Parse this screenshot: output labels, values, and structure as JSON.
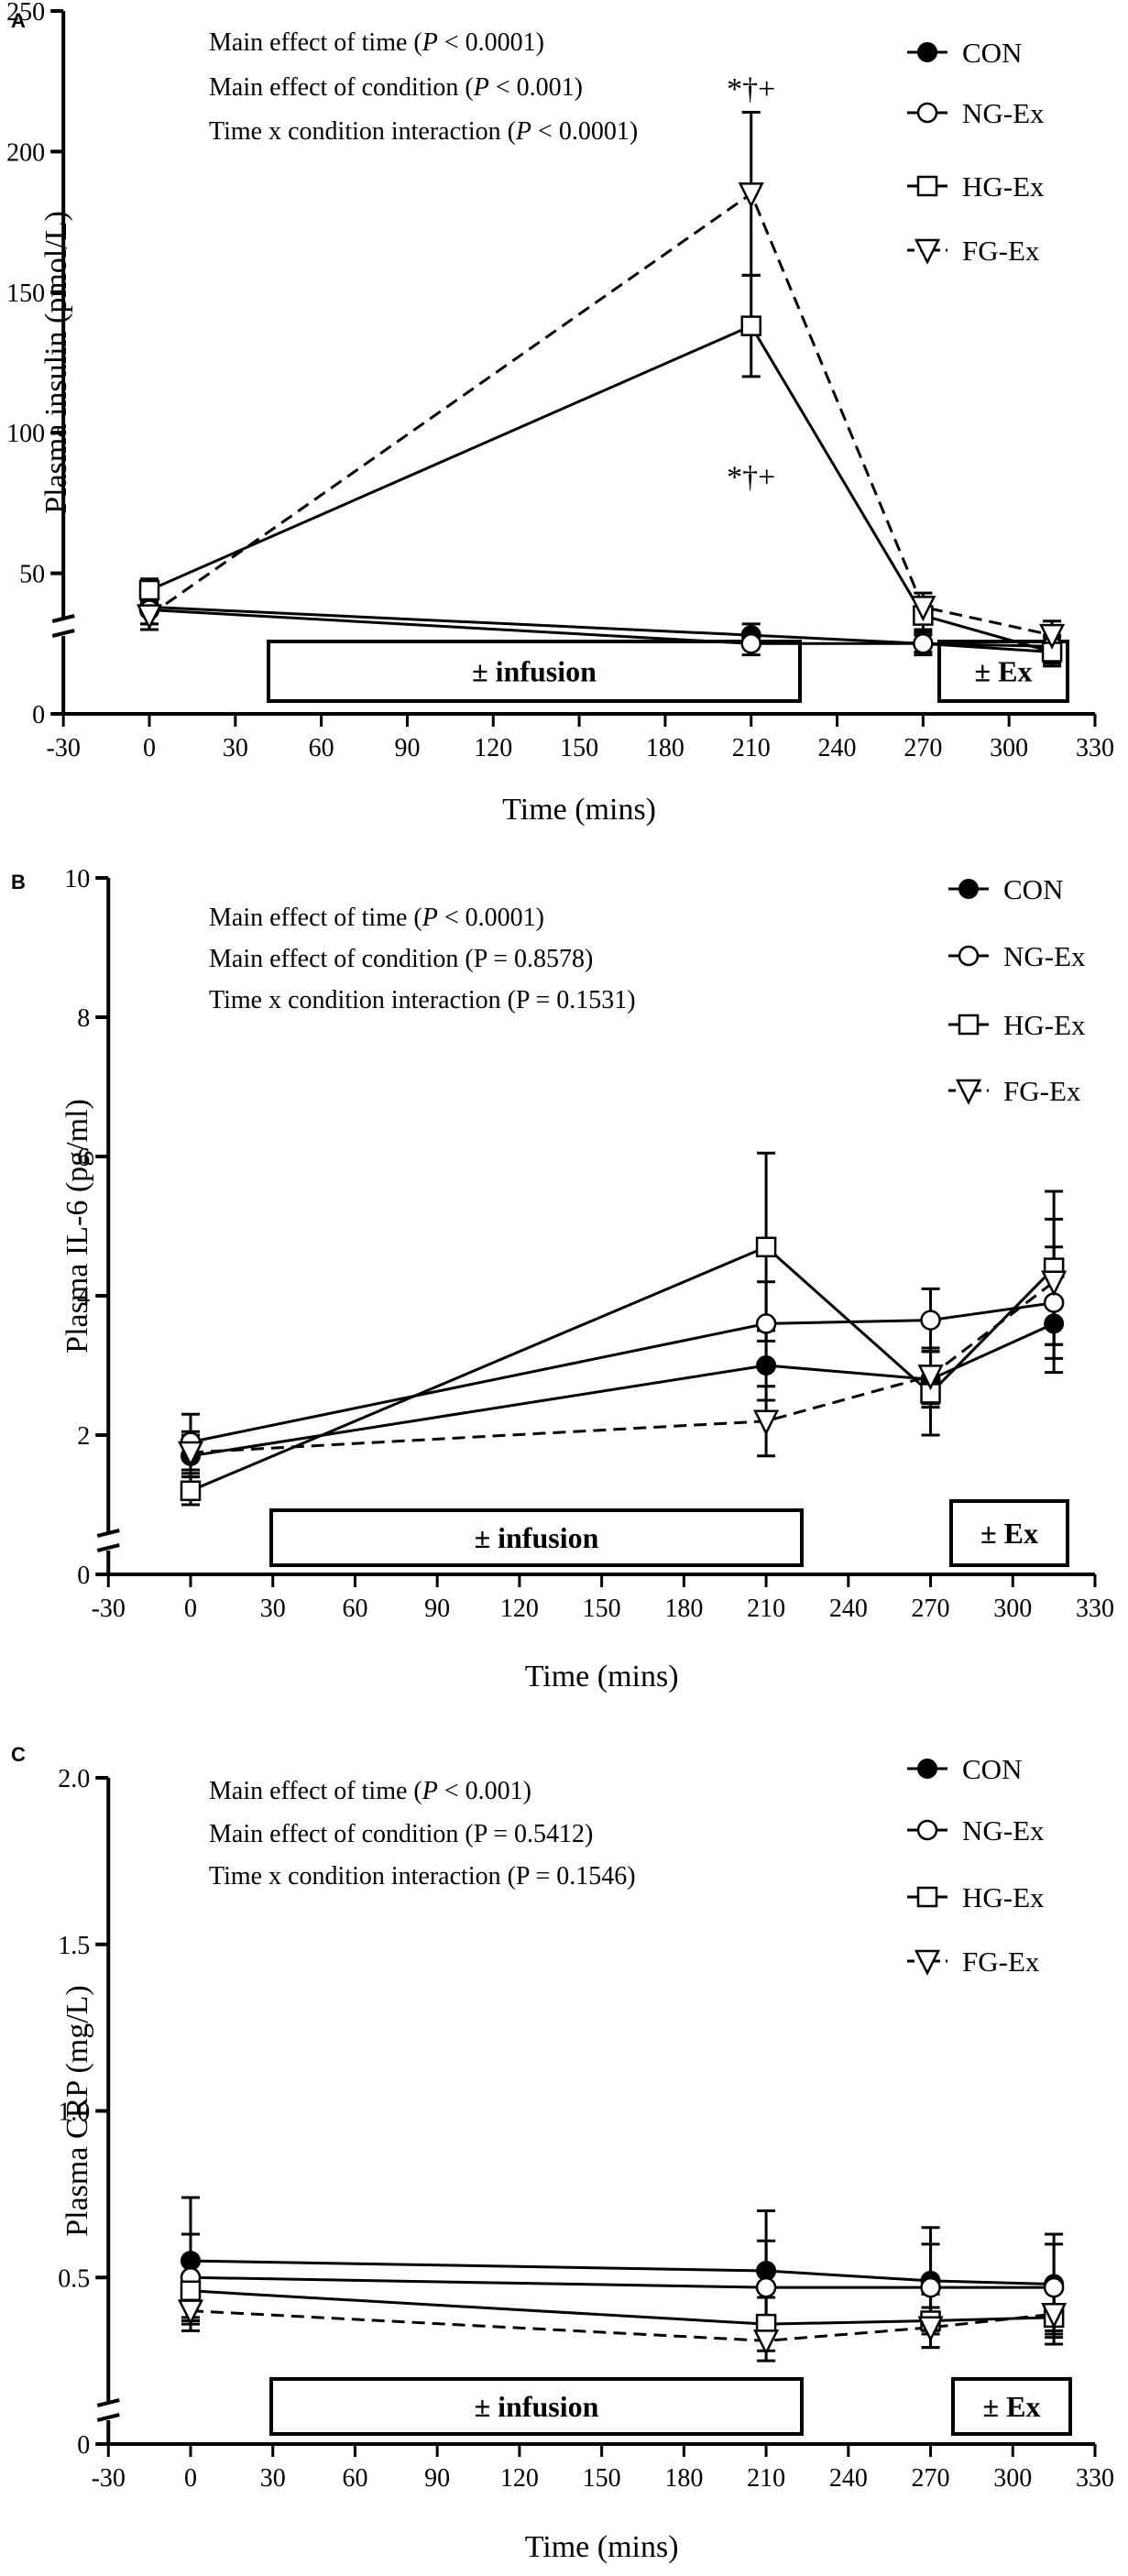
{
  "figure": {
    "series_order": [
      "CON",
      "NG-Ex",
      "HG-Ex",
      "FG-Ex"
    ],
    "x_ticks": [
      "-30",
      "0",
      "30",
      "60",
      "90",
      "120",
      "150",
      "180",
      "210",
      "240",
      "270",
      "300",
      "330"
    ],
    "x_title": "Time (mins)",
    "infusion_label": "± infusion",
    "ex_label": "± Ex"
  },
  "chart_data": [
    {
      "panel": "A",
      "type": "line",
      "ylabel": "Plasma insulin (pmol/L)",
      "xlabel": "Time (mins)",
      "xlim": [
        -30,
        330
      ],
      "ylim": [
        0,
        250
      ],
      "ytick_labels": [
        "0",
        "50",
        "100",
        "150",
        "200",
        "250"
      ],
      "stats": [
        {
          "prefix": "Main effect of time (",
          "p": "P",
          "suffix": " < 0.0001)"
        },
        {
          "prefix": "Main effect of condition (",
          "p": "P",
          "suffix": " < 0.001)"
        },
        {
          "prefix": "Time x condition interaction (",
          "p": "P",
          "suffix": " < 0.0001)"
        }
      ],
      "annotations": [
        {
          "text": "*†+",
          "x": 210,
          "y": 222
        },
        {
          "text": "*†+",
          "x": 210,
          "y": 84
        }
      ],
      "series": [
        {
          "name": "CON",
          "x": [
            0,
            210,
            270,
            315
          ],
          "values": [
            38,
            28,
            25,
            22
          ],
          "err": [
            6,
            4,
            4,
            5
          ]
        },
        {
          "name": "NG-Ex",
          "x": [
            0,
            210,
            270,
            315
          ],
          "values": [
            37,
            25,
            25,
            24
          ],
          "err": [
            5,
            4,
            3,
            4
          ]
        },
        {
          "name": "HG-Ex",
          "x": [
            0,
            210,
            270,
            315
          ],
          "values": [
            44,
            138,
            35,
            22
          ],
          "err": [
            4,
            18,
            5,
            4
          ]
        },
        {
          "name": "FG-Ex",
          "x": [
            0,
            210,
            270,
            315
          ],
          "values": [
            35,
            185,
            38,
            28
          ],
          "err": [
            5,
            29,
            5,
            5
          ]
        }
      ]
    },
    {
      "panel": "B",
      "type": "line",
      "ylabel": "Plasma IL-6 (pg/ml)",
      "xlabel": "Time (mins)",
      "xlim": [
        -30,
        330
      ],
      "ylim": [
        0,
        10
      ],
      "ytick_labels": [
        "0",
        "2",
        "4",
        "6",
        "8",
        "10"
      ],
      "stats": [
        {
          "prefix": "Main effect of time (",
          "p": "P",
          "suffix": " < 0.0001)"
        },
        {
          "prefix": "Main effect of condition (P = 0.8578)",
          "p": "",
          "suffix": ""
        },
        {
          "prefix": "Time x condition interaction (P = 0.1531)",
          "p": "",
          "suffix": ""
        }
      ],
      "annotations": [],
      "series": [
        {
          "name": "CON",
          "x": [
            0,
            210,
            270,
            315
          ],
          "values": [
            1.7,
            3.0,
            2.8,
            3.6
          ],
          "err": [
            0.3,
            0.5,
            0.4,
            0.7
          ]
        },
        {
          "name": "NG-Ex",
          "x": [
            0,
            210,
            270,
            315
          ],
          "values": [
            1.9,
            3.6,
            3.65,
            3.9
          ],
          "err": [
            0.4,
            0.6,
            0.45,
            0.8
          ]
        },
        {
          "name": "HG-Ex",
          "x": [
            0,
            210,
            270,
            315
          ],
          "values": [
            1.2,
            4.7,
            2.6,
            4.4
          ],
          "err": [
            0.2,
            1.35,
            0.6,
            1.1
          ]
        },
        {
          "name": "FG-Ex",
          "x": [
            0,
            210,
            270,
            315
          ],
          "values": [
            1.75,
            2.2,
            2.85,
            4.2
          ],
          "err": [
            0.3,
            0.5,
            0.4,
            0.9
          ]
        }
      ]
    },
    {
      "panel": "C",
      "type": "line",
      "ylabel": "Plasma CRP (mg/L)",
      "xlabel": "Time (mins)",
      "xlim": [
        -30,
        330
      ],
      "ylim": [
        0,
        2.0
      ],
      "ytick_labels": [
        "0",
        "0.5",
        "1.0",
        "1.5",
        "2.0"
      ],
      "stats": [
        {
          "prefix": "Main effect of time (",
          "p": "P",
          "suffix": " < 0.001)"
        },
        {
          "prefix": "Main effect of condition (P = 0.5412)",
          "p": "",
          "suffix": ""
        },
        {
          "prefix": "Time x condition interaction (P = 0.1546)",
          "p": "",
          "suffix": ""
        }
      ],
      "annotations": [],
      "series": [
        {
          "name": "CON",
          "x": [
            0,
            210,
            270,
            315
          ],
          "values": [
            0.55,
            0.52,
            0.49,
            0.48
          ],
          "err": [
            0.19,
            0.18,
            0.16,
            0.15
          ]
        },
        {
          "name": "NG-Ex",
          "x": [
            0,
            210,
            270,
            315
          ],
          "values": [
            0.5,
            0.47,
            0.47,
            0.47
          ],
          "err": [
            0.13,
            0.14,
            0.13,
            0.13
          ]
        },
        {
          "name": "HG-Ex",
          "x": [
            0,
            210,
            270,
            315
          ],
          "values": [
            0.46,
            0.36,
            0.37,
            0.38
          ],
          "err": [
            0.08,
            0.08,
            0.08,
            0.08
          ]
        },
        {
          "name": "FG-Ex",
          "x": [
            0,
            210,
            270,
            315
          ],
          "values": [
            0.4,
            0.31,
            0.35,
            0.39
          ],
          "err": [
            0.06,
            0.06,
            0.06,
            0.07
          ]
        }
      ]
    }
  ]
}
